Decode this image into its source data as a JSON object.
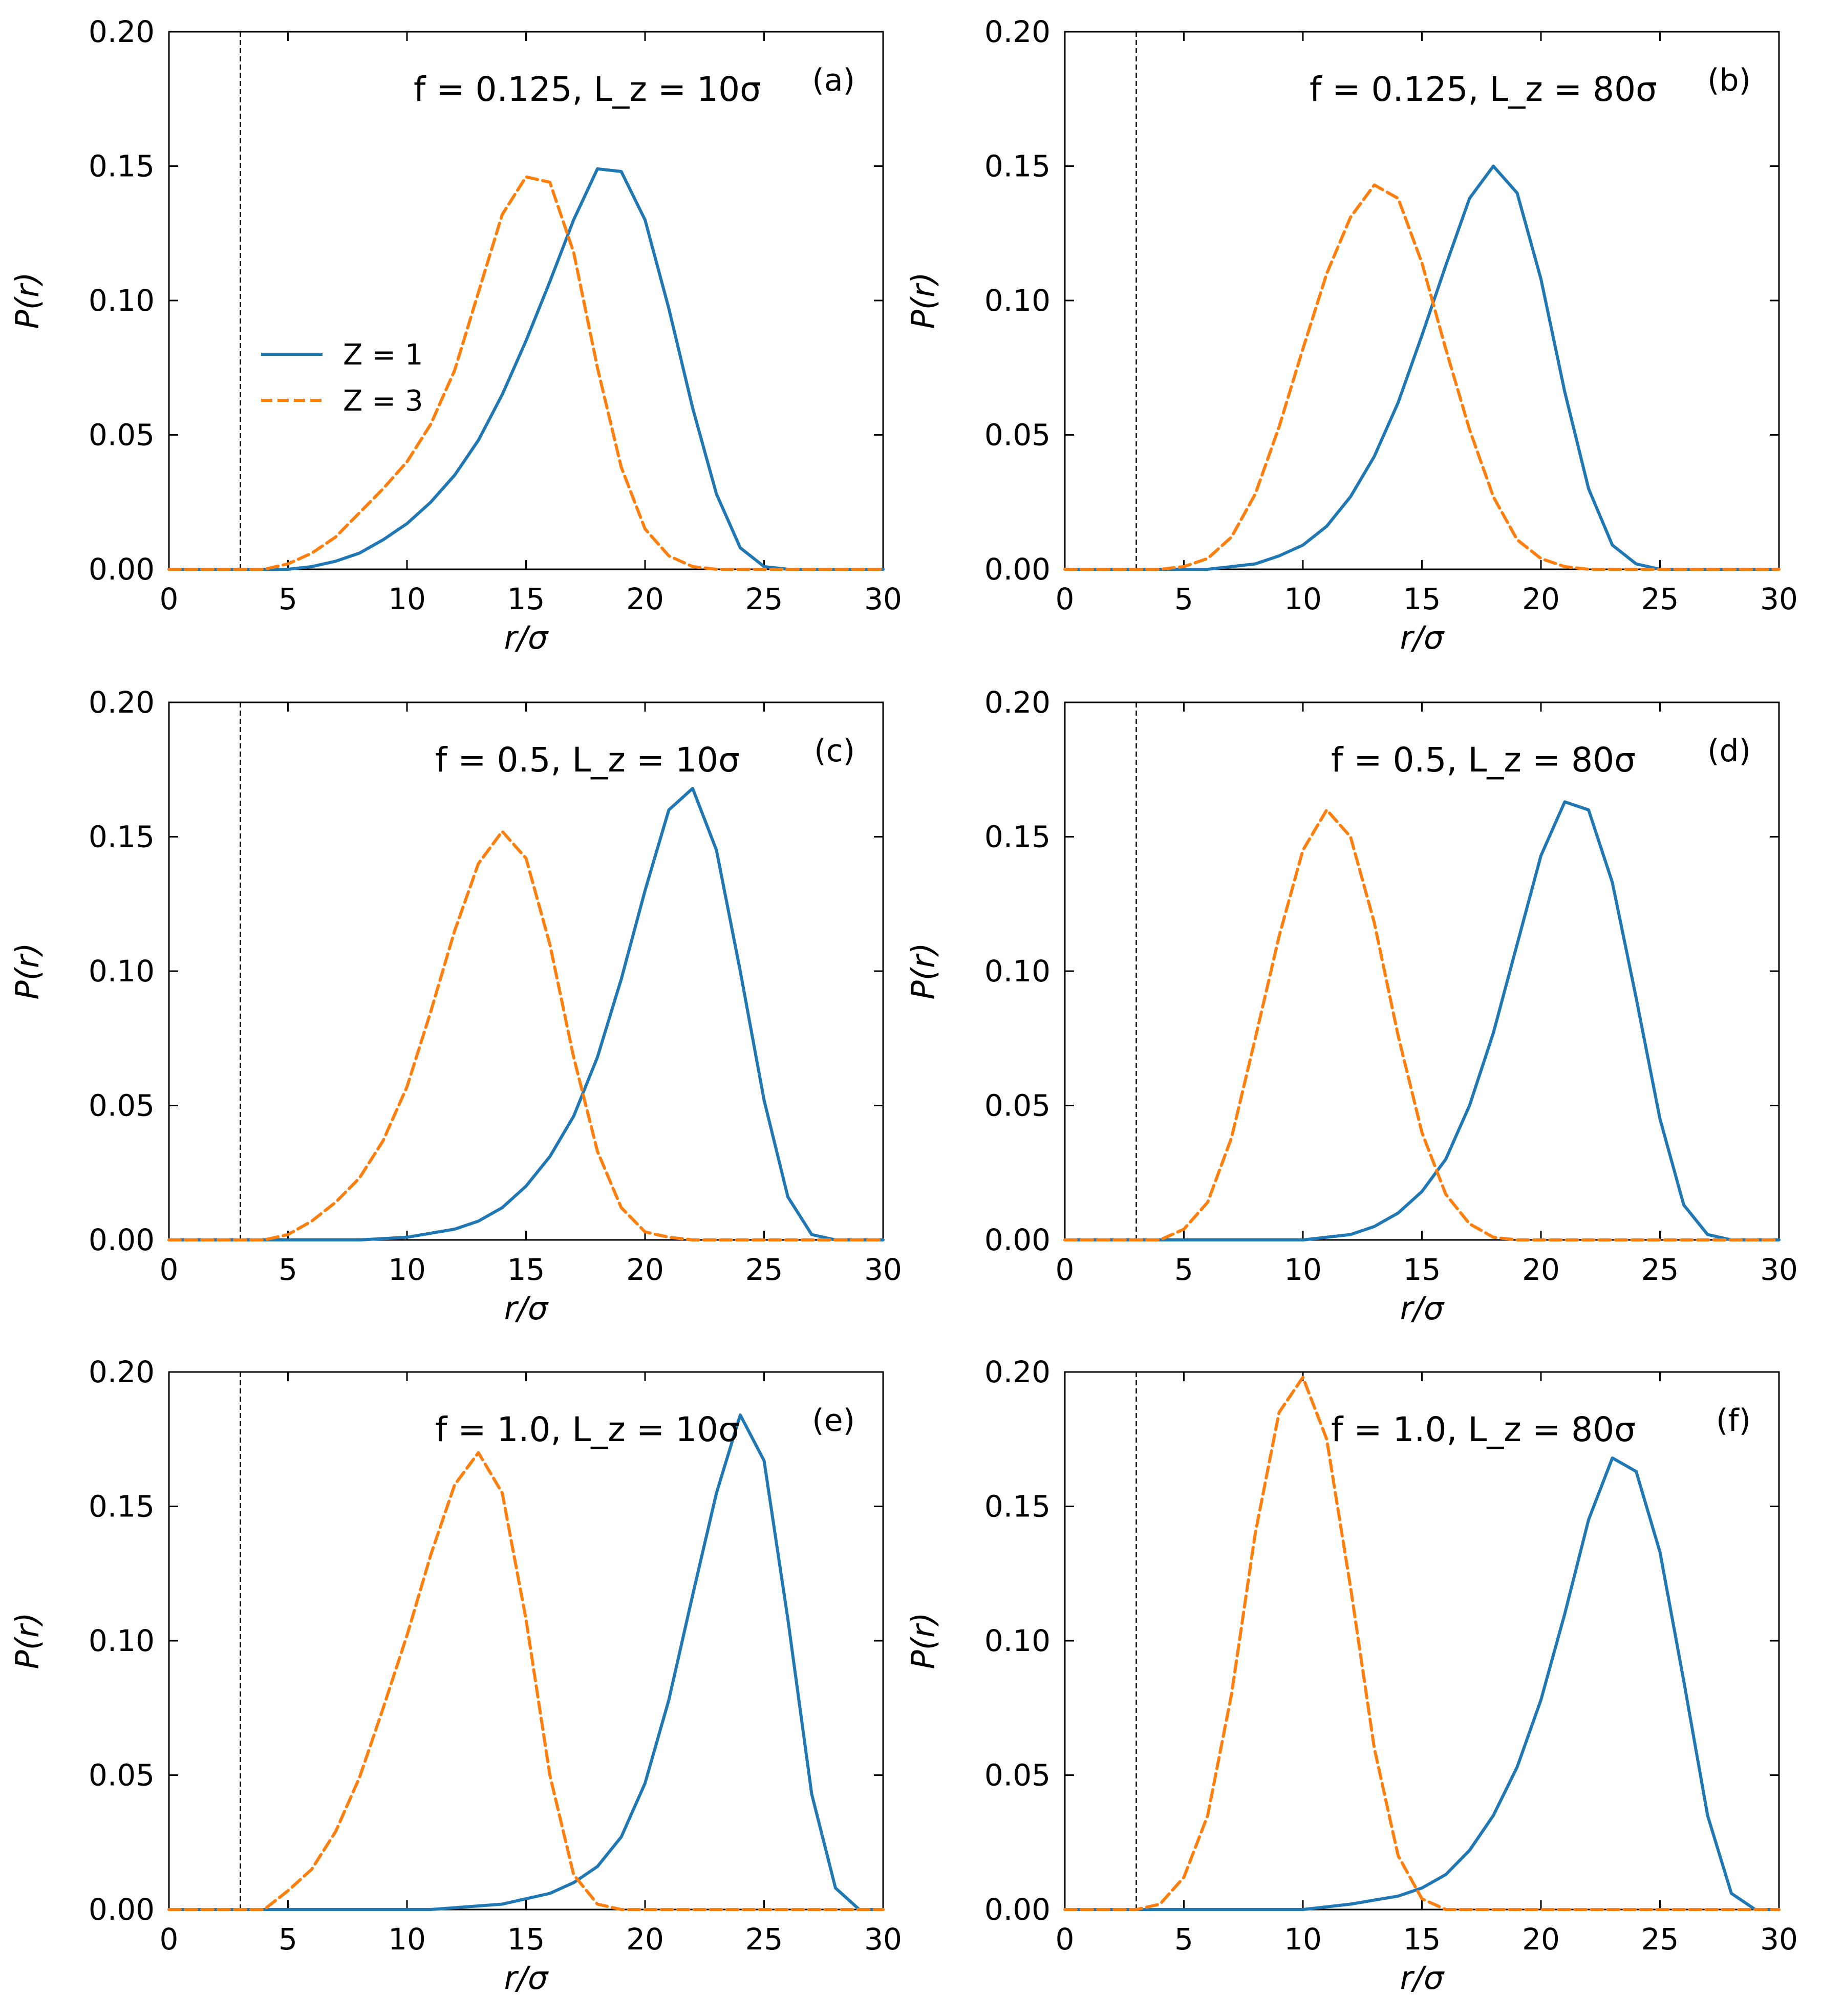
{
  "chart_data": [
    {
      "type": "line",
      "panel_label": "(a)",
      "annotation": "f = 0.125,  L_z = 10σ",
      "xlabel": "r/σ",
      "ylabel": "P(r)",
      "xlim": [
        0,
        30
      ],
      "ylim": [
        0,
        0.2
      ],
      "xticks": [
        "0",
        "5",
        "10",
        "15",
        "20",
        "25",
        "30"
      ],
      "yticks": [
        "0.00",
        "0.05",
        "0.10",
        "0.15",
        "0.20"
      ],
      "vline": 3,
      "show_legend": true,
      "series": [
        {
          "name": "Z = 1",
          "color": "#1f77b4",
          "dash": "solid",
          "x": [
            5,
            6,
            7,
            8,
            9,
            10,
            11,
            12,
            13,
            14,
            15,
            16,
            17,
            18,
            19,
            20,
            21,
            22,
            23,
            24,
            25,
            26
          ],
          "y": [
            0.0,
            0.001,
            0.003,
            0.006,
            0.011,
            0.017,
            0.025,
            0.035,
            0.048,
            0.065,
            0.085,
            0.107,
            0.13,
            0.149,
            0.148,
            0.13,
            0.097,
            0.06,
            0.028,
            0.008,
            0.001,
            0.0
          ]
        },
        {
          "name": "Z = 3",
          "color": "#ff7f0e",
          "dash": "dashed",
          "x": [
            4,
            5,
            6,
            7,
            8,
            9,
            10,
            11,
            12,
            13,
            14,
            15,
            16,
            17,
            18,
            19,
            20,
            21,
            22,
            23
          ],
          "y": [
            0.0,
            0.002,
            0.006,
            0.012,
            0.021,
            0.03,
            0.04,
            0.054,
            0.074,
            0.103,
            0.132,
            0.146,
            0.144,
            0.118,
            0.075,
            0.038,
            0.015,
            0.005,
            0.001,
            0.0
          ]
        }
      ]
    },
    {
      "type": "line",
      "panel_label": "(b)",
      "annotation": "f = 0.125,  L_z = 80σ",
      "xlabel": "r/σ",
      "ylabel": "P(r)",
      "xlim": [
        0,
        30
      ],
      "ylim": [
        0,
        0.2
      ],
      "xticks": [
        "0",
        "5",
        "10",
        "15",
        "20",
        "25",
        "30"
      ],
      "yticks": [
        "0.00",
        "0.05",
        "0.10",
        "0.15",
        "0.20"
      ],
      "vline": 3,
      "show_legend": false,
      "series": [
        {
          "name": "Z = 1",
          "color": "#1f77b4",
          "dash": "solid",
          "x": [
            6,
            7,
            8,
            9,
            10,
            11,
            12,
            13,
            14,
            15,
            16,
            17,
            18,
            19,
            20,
            21,
            22,
            23,
            24,
            25
          ],
          "y": [
            0.0,
            0.001,
            0.002,
            0.005,
            0.009,
            0.016,
            0.027,
            0.042,
            0.062,
            0.087,
            0.113,
            0.138,
            0.15,
            0.14,
            0.108,
            0.066,
            0.03,
            0.009,
            0.002,
            0.0
          ]
        },
        {
          "name": "Z = 3",
          "color": "#ff7f0e",
          "dash": "dashed",
          "x": [
            4,
            5,
            6,
            7,
            8,
            9,
            10,
            11,
            12,
            13,
            14,
            15,
            16,
            17,
            18,
            19,
            20,
            21,
            22
          ],
          "y": [
            0.0,
            0.001,
            0.004,
            0.012,
            0.028,
            0.053,
            0.082,
            0.11,
            0.131,
            0.143,
            0.138,
            0.114,
            0.082,
            0.052,
            0.027,
            0.011,
            0.004,
            0.001,
            0.0
          ]
        }
      ]
    },
    {
      "type": "line",
      "panel_label": "(c)",
      "annotation": "f = 0.5,  L_z = 10σ",
      "xlabel": "r/σ",
      "ylabel": "P(r)",
      "xlim": [
        0,
        30
      ],
      "ylim": [
        0,
        0.2
      ],
      "xticks": [
        "0",
        "5",
        "10",
        "15",
        "20",
        "25",
        "30"
      ],
      "yticks": [
        "0.00",
        "0.05",
        "0.10",
        "0.15",
        "0.20"
      ],
      "vline": 3,
      "show_legend": false,
      "series": [
        {
          "name": "Z = 1",
          "color": "#1f77b4",
          "dash": "solid",
          "x": [
            8,
            10,
            12,
            13,
            14,
            15,
            16,
            17,
            18,
            19,
            20,
            21,
            22,
            23,
            24,
            25,
            26,
            27,
            28
          ],
          "y": [
            0.0,
            0.001,
            0.004,
            0.007,
            0.012,
            0.02,
            0.031,
            0.046,
            0.068,
            0.097,
            0.13,
            0.16,
            0.168,
            0.145,
            0.1,
            0.052,
            0.016,
            0.002,
            0.0
          ]
        },
        {
          "name": "Z = 3",
          "color": "#ff7f0e",
          "dash": "dashed",
          "x": [
            4,
            5,
            6,
            7,
            8,
            9,
            10,
            11,
            12,
            13,
            14,
            15,
            16,
            17,
            18,
            19,
            20,
            21,
            22
          ],
          "y": [
            0.0,
            0.002,
            0.007,
            0.014,
            0.023,
            0.037,
            0.057,
            0.085,
            0.115,
            0.14,
            0.152,
            0.142,
            0.11,
            0.068,
            0.033,
            0.012,
            0.003,
            0.001,
            0.0
          ]
        }
      ]
    },
    {
      "type": "line",
      "panel_label": "(d)",
      "annotation": "f = 0.5,  L_z = 80σ",
      "xlabel": "r/σ",
      "ylabel": "P(r)",
      "xlim": [
        0,
        30
      ],
      "ylim": [
        0,
        0.2
      ],
      "xticks": [
        "0",
        "5",
        "10",
        "15",
        "20",
        "25",
        "30"
      ],
      "yticks": [
        "0.00",
        "0.05",
        "0.10",
        "0.15",
        "0.20"
      ],
      "vline": 3,
      "show_legend": false,
      "series": [
        {
          "name": "Z = 1",
          "color": "#1f77b4",
          "dash": "solid",
          "x": [
            10,
            12,
            13,
            14,
            15,
            16,
            17,
            18,
            19,
            20,
            21,
            22,
            23,
            24,
            25,
            26,
            27,
            28
          ],
          "y": [
            0.0,
            0.002,
            0.005,
            0.01,
            0.018,
            0.03,
            0.05,
            0.077,
            0.11,
            0.143,
            0.163,
            0.16,
            0.133,
            0.09,
            0.045,
            0.013,
            0.002,
            0.0
          ]
        },
        {
          "name": "Z = 3",
          "color": "#ff7f0e",
          "dash": "dashed",
          "x": [
            4,
            5,
            6,
            7,
            8,
            9,
            10,
            11,
            12,
            13,
            14,
            15,
            16,
            17,
            18,
            19
          ],
          "y": [
            0.0,
            0.004,
            0.014,
            0.038,
            0.075,
            0.113,
            0.145,
            0.16,
            0.15,
            0.118,
            0.076,
            0.04,
            0.017,
            0.006,
            0.001,
            0.0
          ]
        }
      ]
    },
    {
      "type": "line",
      "panel_label": "(e)",
      "annotation": "f = 1.0,  L_z = 10σ",
      "xlabel": "r/σ",
      "ylabel": "P(r)",
      "xlim": [
        0,
        30
      ],
      "ylim": [
        0,
        0.2
      ],
      "xticks": [
        "0",
        "5",
        "10",
        "15",
        "20",
        "25",
        "30"
      ],
      "yticks": [
        "0.00",
        "0.05",
        "0.10",
        "0.15",
        "0.20"
      ],
      "vline": 3,
      "show_legend": false,
      "series": [
        {
          "name": "Z = 1",
          "color": "#1f77b4",
          "dash": "solid",
          "x": [
            11,
            14,
            16,
            17,
            18,
            19,
            20,
            21,
            22,
            23,
            24,
            25,
            26,
            27,
            28,
            29
          ],
          "y": [
            0.0,
            0.002,
            0.006,
            0.01,
            0.016,
            0.027,
            0.047,
            0.078,
            0.117,
            0.155,
            0.184,
            0.167,
            0.108,
            0.043,
            0.008,
            0.0
          ]
        },
        {
          "name": "Z = 3",
          "color": "#ff7f0e",
          "dash": "dashed",
          "x": [
            4,
            5,
            6,
            7,
            8,
            9,
            10,
            11,
            12,
            13,
            14,
            15,
            16,
            17,
            18,
            19
          ],
          "y": [
            0.0,
            0.007,
            0.015,
            0.029,
            0.049,
            0.075,
            0.102,
            0.132,
            0.158,
            0.17,
            0.155,
            0.108,
            0.05,
            0.013,
            0.002,
            0.0
          ]
        }
      ]
    },
    {
      "type": "line",
      "panel_label": "(f)",
      "annotation": "f = 1.0,  L_z = 80σ",
      "xlabel": "r/σ",
      "ylabel": "P(r)",
      "xlim": [
        0,
        30
      ],
      "ylim": [
        0,
        0.2
      ],
      "xticks": [
        "0",
        "5",
        "10",
        "15",
        "20",
        "25",
        "30"
      ],
      "yticks": [
        "0.00",
        "0.05",
        "0.10",
        "0.15",
        "0.20"
      ],
      "vline": 3,
      "show_legend": false,
      "series": [
        {
          "name": "Z = 1",
          "color": "#1f77b4",
          "dash": "solid",
          "x": [
            10,
            12,
            14,
            15,
            16,
            17,
            18,
            19,
            20,
            21,
            22,
            23,
            24,
            25,
            26,
            27,
            28,
            29
          ],
          "y": [
            0.0,
            0.002,
            0.005,
            0.008,
            0.013,
            0.022,
            0.035,
            0.053,
            0.078,
            0.11,
            0.145,
            0.168,
            0.163,
            0.133,
            0.085,
            0.035,
            0.006,
            0.0
          ]
        },
        {
          "name": "Z = 3",
          "color": "#ff7f0e",
          "dash": "dashed",
          "x": [
            3,
            4,
            5,
            6,
            7,
            8,
            9,
            10,
            11,
            12,
            13,
            14,
            15,
            16
          ],
          "y": [
            0.0,
            0.002,
            0.012,
            0.035,
            0.08,
            0.14,
            0.185,
            0.198,
            0.175,
            0.12,
            0.06,
            0.02,
            0.004,
            0.0
          ]
        }
      ]
    }
  ]
}
